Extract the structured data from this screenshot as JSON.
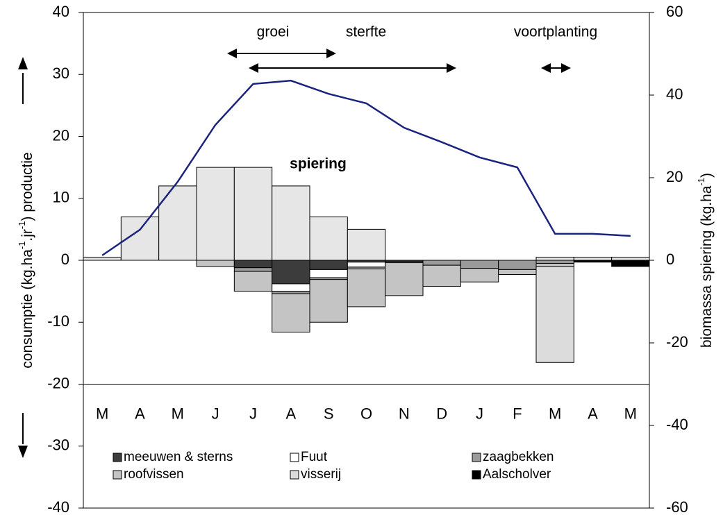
{
  "chart_data": {
    "type": "bar",
    "categories": [
      "M",
      "A",
      "M",
      "J",
      "J",
      "A",
      "S",
      "O",
      "N",
      "D",
      "J",
      "F",
      "M",
      "A",
      "M"
    ],
    "ylim": [
      -40,
      40
    ],
    "yticks": [
      40,
      30,
      20,
      10,
      0,
      -10,
      -20,
      -30,
      -40
    ],
    "y2lim": [
      -60,
      60
    ],
    "y2ticks": [
      60,
      40,
      20,
      0,
      -20,
      -40,
      -60
    ],
    "y_label_parts": [
      "consumptie (kg.ha",
      "-1",
      ".jr",
      "-1",
      ") productie"
    ],
    "y2_label_parts": [
      "biomassa spiering (kg.ha",
      "-1",
      ")"
    ],
    "annotations": [
      "groei",
      "sterfte",
      "voortplanting",
      "spiering"
    ],
    "production": {
      "color": "#e6e6e6",
      "values": [
        0.5,
        7,
        12,
        15,
        15,
        12,
        7,
        5,
        0,
        0,
        0,
        0,
        0.5,
        0.5,
        0.5
      ]
    },
    "biomass": {
      "color": "#1a237e",
      "axis": "y2",
      "values": [
        1.2,
        7.4,
        19,
        32.8,
        42.7,
        43.5,
        40.3,
        38,
        32.1,
        28.6,
        24.9,
        22.5,
        6.4,
        6.4,
        5.9
      ]
    },
    "series": [
      {
        "name": "meeuwen & sterns",
        "color": "#3c3c3c",
        "values": [
          0,
          0,
          0,
          0,
          -1.2,
          -3.8,
          -1.5,
          -0.3,
          -0.2,
          0,
          0,
          0,
          0,
          0,
          0
        ]
      },
      {
        "name": "Fuut",
        "color": "#ffffff",
        "values": [
          0,
          0,
          0,
          0,
          0,
          -1.2,
          -1.3,
          -0.8,
          0,
          0,
          0,
          0,
          0,
          0,
          0
        ]
      },
      {
        "name": "zaagbekken",
        "color": "#9a9a9a",
        "values": [
          0,
          0,
          0,
          0,
          -0.6,
          -0.4,
          -0.3,
          -0.3,
          -0.2,
          -0.8,
          -1.3,
          -1.5,
          -0.5,
          0,
          0
        ]
      },
      {
        "name": "roofvissen",
        "color": "#c4c4c4",
        "values": [
          0,
          0,
          0,
          -1,
          -3.2,
          -6.2,
          -6.9,
          -6.1,
          -5.3,
          -3.4,
          -2.2,
          -0.8,
          -0.5,
          0,
          0
        ]
      },
      {
        "name": "visserij",
        "color": "#dcdcdc",
        "values": [
          0,
          0,
          0,
          0,
          0,
          0,
          0,
          0,
          0,
          0,
          0,
          0,
          -15.5,
          0,
          0
        ]
      },
      {
        "name": "Aalscholver",
        "color": "#000000",
        "values": [
          0,
          0,
          0,
          0,
          0,
          0,
          0,
          0,
          0,
          0,
          0,
          0,
          0,
          -0.3,
          -1
        ]
      }
    ]
  }
}
